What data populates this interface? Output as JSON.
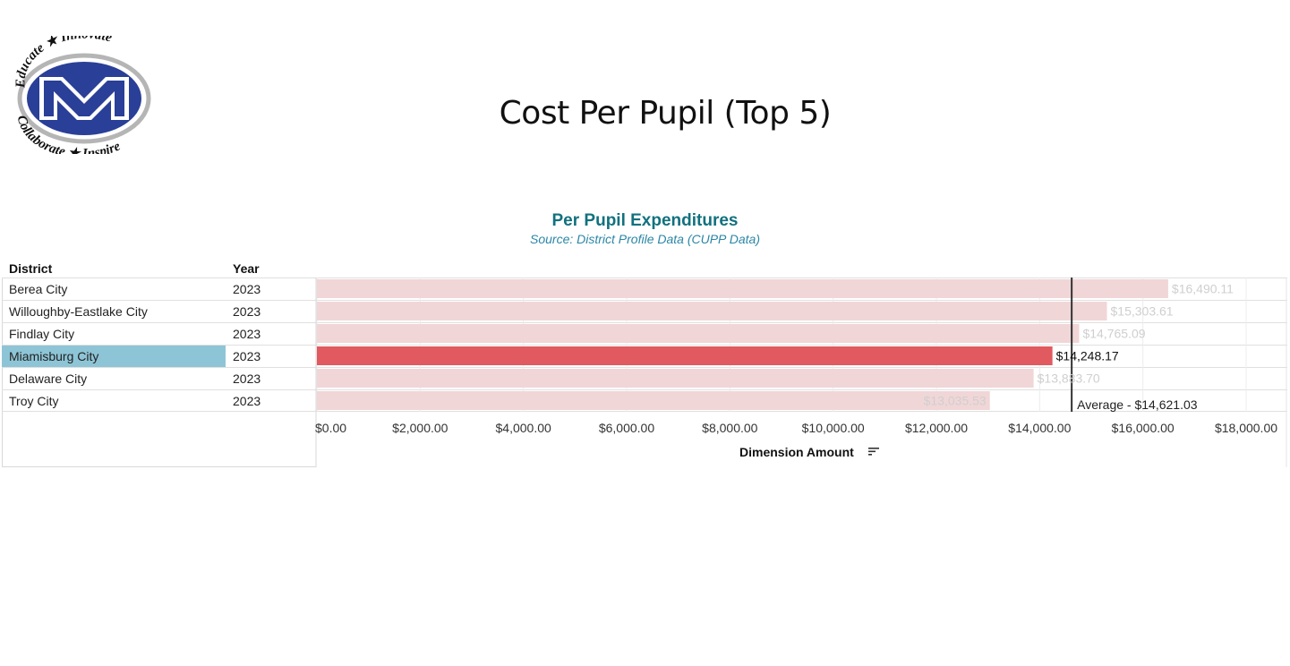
{
  "logo": {
    "top_text": "Educate ★ Innovate",
    "bottom_text": "Collaborate ★ Inspire",
    "letter": "M"
  },
  "page_title": "Cost Per Pupil (Top 5)",
  "table": {
    "headers": {
      "district": "District",
      "year": "Year"
    },
    "rows": [
      {
        "district": "Berea City",
        "year": "2023"
      },
      {
        "district": "Willoughby-Eastlake City",
        "year": "2023"
      },
      {
        "district": "Findlay City",
        "year": "2023"
      },
      {
        "district": "Miamisburg City",
        "year": "2023"
      },
      {
        "district": "Delaware City",
        "year": "2023"
      },
      {
        "district": "Troy City",
        "year": "2023"
      }
    ]
  },
  "chart_data": {
    "type": "bar",
    "orientation": "horizontal",
    "title": "Per Pupil Expenditures",
    "subtitle": "Source: District Profile Data (CUPP Data)",
    "categories": [
      "Berea City",
      "Willoughby-Eastlake City",
      "Findlay City",
      "Miamisburg City",
      "Delaware City",
      "Troy City"
    ],
    "values": [
      16490.11,
      15303.61,
      14765.09,
      14248.17,
      13883.7,
      13035.53
    ],
    "value_labels": [
      "$16,490.11",
      "$15,303.61",
      "$14,765.09",
      "$14,248.17",
      "$13,883.70",
      "$13,035.53"
    ],
    "highlighted": "Miamisburg City",
    "xlabel": "Dimension Amount",
    "xlim": [
      0,
      18000
    ],
    "xticks": [
      0,
      2000,
      4000,
      6000,
      8000,
      10000,
      12000,
      14000,
      16000,
      18000
    ],
    "xtick_labels": [
      "$0.00",
      "$2,000.00",
      "$4,000.00",
      "$6,000.00",
      "$8,000.00",
      "$10,000.00",
      "$12,000.00",
      "$14,000.00",
      "$16,000.00",
      "$18,000.00"
    ],
    "reference_line": {
      "value": 14621.03,
      "label": "Average - $14,621.03"
    },
    "grid": true,
    "colors": {
      "highlight": "#e05a5f",
      "muted": "#f1d6d7",
      "muted_label": "#cfcfcf",
      "reference": "#333333"
    }
  }
}
